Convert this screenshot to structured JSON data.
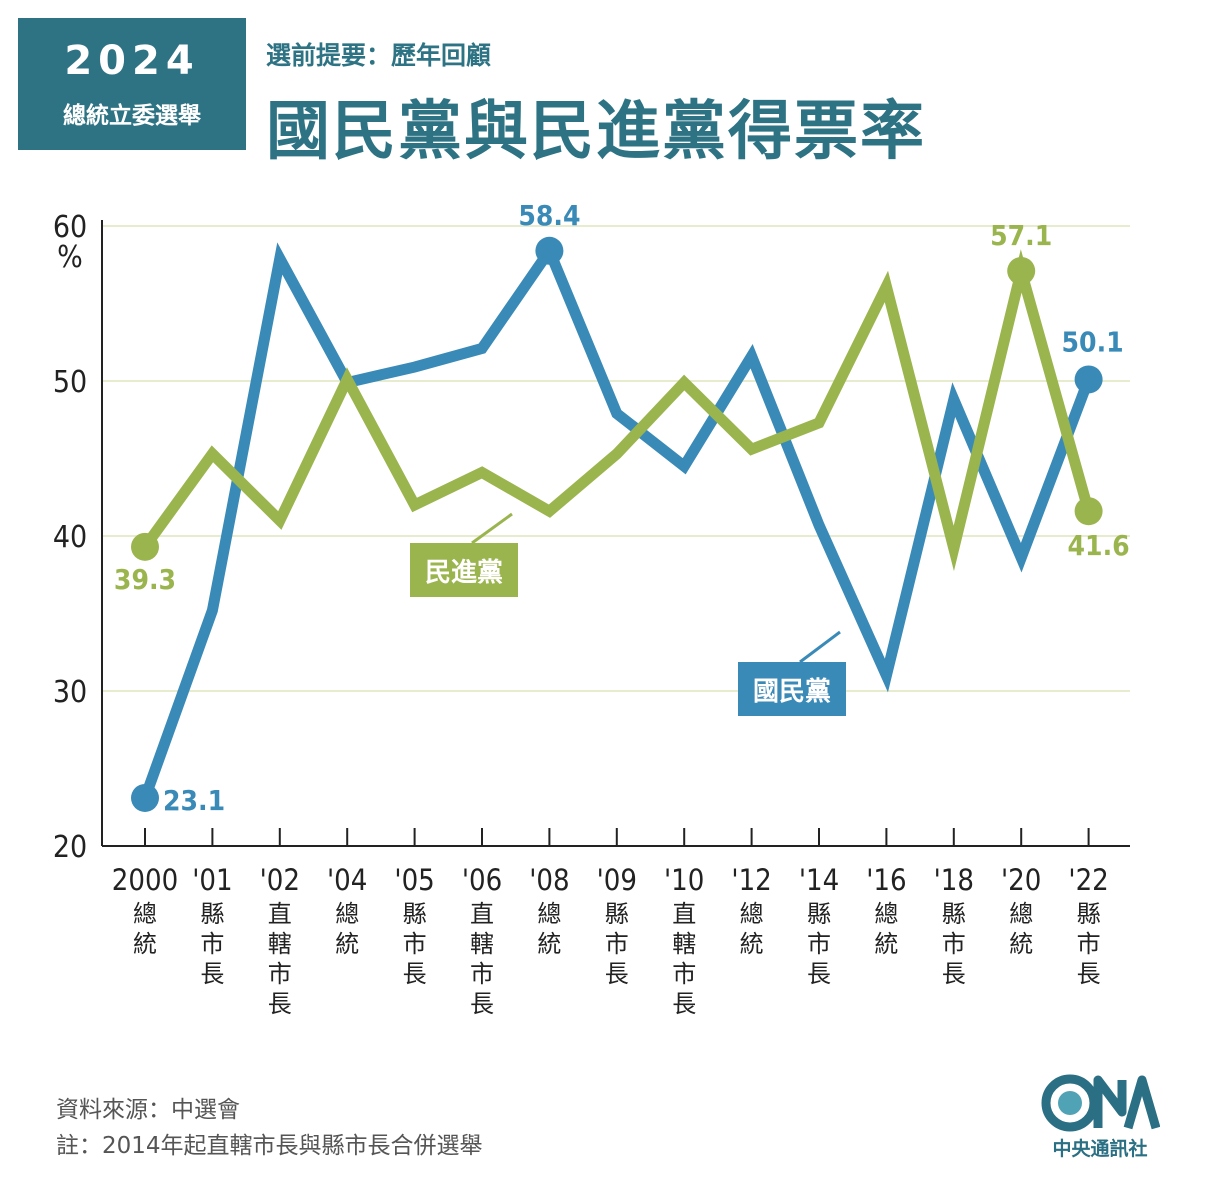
{
  "badge": {
    "year": "2024",
    "subtitle": "總統立委選舉"
  },
  "header": {
    "subtitle": "選前提要：歷年回顧",
    "title": "國民黨與民進黨得票率"
  },
  "colors": {
    "kmt": "#3a8ab8",
    "dpp": "#9bb54e",
    "brand": "#2e7384",
    "grid": "#e8eccf",
    "axis": "#222222"
  },
  "chart_data": {
    "type": "line",
    "ylim": [
      20,
      60
    ],
    "ytick_labels": [
      "20",
      "30",
      "40",
      "50",
      "60"
    ],
    "yunit": "%",
    "grid": true,
    "categories": [
      "2000",
      "'01",
      "'02",
      "'04",
      "'05",
      "'06",
      "'08",
      "'09",
      "'10",
      "'12",
      "'14",
      "'16",
      "'18",
      "'20",
      "'22"
    ],
    "category_types": [
      "總統",
      "縣市長",
      "直轄市長",
      "總統",
      "縣市長",
      "直轄市長",
      "總統",
      "縣市長",
      "直轄市長",
      "總統",
      "縣市長",
      "總統",
      "縣市長",
      "總統",
      "縣市長"
    ],
    "series": [
      {
        "name": "國民黨",
        "color": "#3a8ab8",
        "values": [
          23.1,
          35.2,
          57.9,
          49.9,
          50.9,
          52.1,
          58.4,
          47.9,
          44.5,
          51.6,
          40.7,
          31.0,
          48.8,
          38.6,
          50.1
        ]
      },
      {
        "name": "民進黨",
        "color": "#9bb54e",
        "values": [
          39.3,
          45.3,
          41.0,
          50.1,
          42.0,
          44.1,
          41.6,
          45.3,
          49.9,
          45.6,
          47.3,
          56.1,
          39.2,
          57.1,
          41.6
        ]
      }
    ],
    "data_labels": [
      {
        "series": "國民黨",
        "index": 0,
        "text": "23.1"
      },
      {
        "series": "國民黨",
        "index": 6,
        "text": "58.4"
      },
      {
        "series": "國民黨",
        "index": 14,
        "text": "50.1"
      },
      {
        "series": "民進黨",
        "index": 0,
        "text": "39.3"
      },
      {
        "series": "民進黨",
        "index": 13,
        "text": "57.1"
      },
      {
        "series": "民進黨",
        "index": 14,
        "text": "41.6"
      }
    ]
  },
  "footer": {
    "source": "資料來源：中選會",
    "note": "註：2014年起直轄市長與縣市長合併選舉"
  },
  "logo": {
    "text": "中央通訊社",
    "icon": "cna-logo-icon"
  }
}
